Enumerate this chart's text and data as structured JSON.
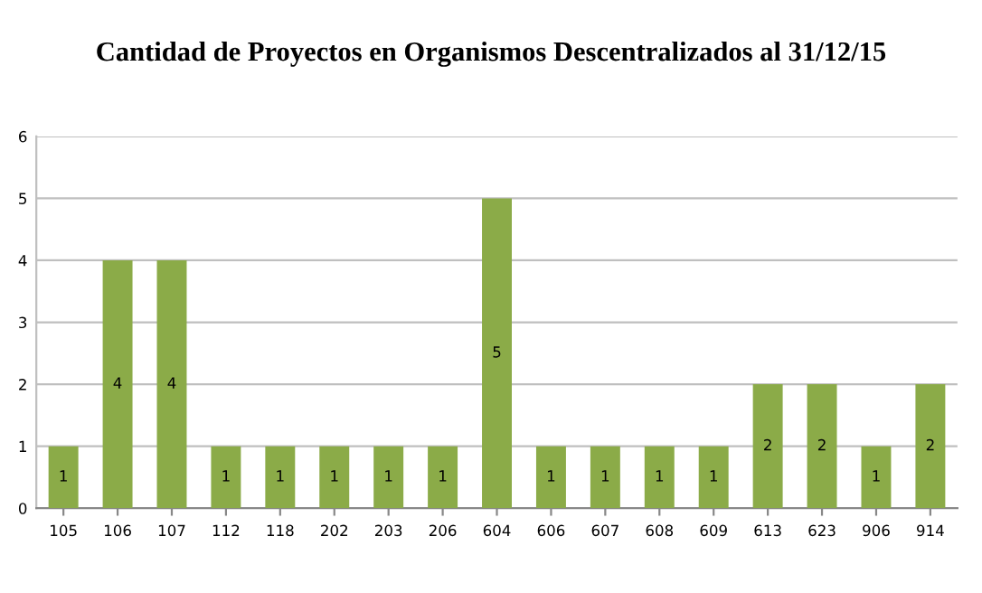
{
  "chart_data": {
    "type": "bar",
    "title": "Cantidad de Proyectos en Organismos Descentralizados al 31/12/15",
    "categories": [
      "105",
      "106",
      "107",
      "112",
      "118",
      "202",
      "203",
      "206",
      "604",
      "606",
      "607",
      "608",
      "609",
      "613",
      "623",
      "906",
      "914"
    ],
    "values": [
      1,
      4,
      4,
      1,
      1,
      1,
      1,
      1,
      5,
      1,
      1,
      1,
      1,
      2,
      2,
      1,
      2
    ],
    "color": "#8bab48",
    "ylim": [
      0,
      6
    ],
    "yticks": [
      0,
      1,
      2,
      3,
      4,
      5,
      6
    ],
    "grid": "y",
    "data_labels": true
  }
}
